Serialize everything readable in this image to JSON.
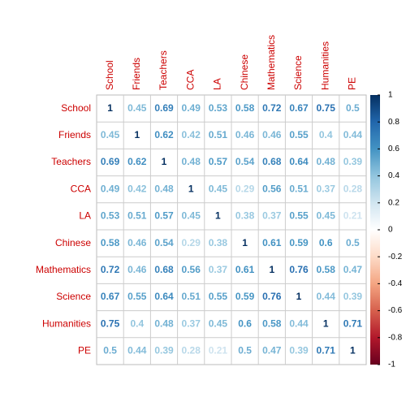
{
  "chart_data": {
    "type": "corrplot",
    "labels": [
      "School",
      "Friends",
      "Teachers",
      "CCA",
      "LA",
      "Chinese",
      "Mathematics",
      "Science",
      "Humanities",
      "PE"
    ],
    "values": [
      [
        1,
        0.45,
        0.69,
        0.49,
        0.53,
        0.58,
        0.72,
        0.67,
        0.75,
        0.5
      ],
      [
        0.45,
        1,
        0.62,
        0.42,
        0.51,
        0.46,
        0.46,
        0.55,
        0.4,
        0.44
      ],
      [
        0.69,
        0.62,
        1,
        0.48,
        0.57,
        0.54,
        0.68,
        0.64,
        0.48,
        0.39
      ],
      [
        0.49,
        0.42,
        0.48,
        1,
        0.45,
        0.29,
        0.56,
        0.51,
        0.37,
        0.28
      ],
      [
        0.53,
        0.51,
        0.57,
        0.45,
        1,
        0.38,
        0.37,
        0.55,
        0.45,
        0.21
      ],
      [
        0.58,
        0.46,
        0.54,
        0.29,
        0.38,
        1,
        0.61,
        0.59,
        0.6,
        0.5
      ],
      [
        0.72,
        0.46,
        0.68,
        0.56,
        0.37,
        0.61,
        1,
        0.76,
        0.58,
        0.47
      ],
      [
        0.67,
        0.55,
        0.64,
        0.51,
        0.55,
        0.59,
        0.76,
        1,
        0.44,
        0.39
      ],
      [
        0.75,
        0.4,
        0.48,
        0.37,
        0.45,
        0.6,
        0.58,
        0.44,
        1,
        0.71
      ],
      [
        0.5,
        0.44,
        0.39,
        0.28,
        0.21,
        0.5,
        0.47,
        0.39,
        0.71,
        1
      ]
    ],
    "clim": [
      -1,
      1
    ],
    "cticks": [
      1,
      0.8,
      0.6,
      0.4,
      0.2,
      0,
      -0.2,
      -0.4,
      -0.6,
      -0.8,
      -1
    ],
    "palette": [
      "#67001F",
      "#B2182B",
      "#D6604D",
      "#F4A582",
      "#FDDBC7",
      "#FFFFFF",
      "#D1E5F0",
      "#92C5DE",
      "#4393C3",
      "#2166AC",
      "#053061"
    ]
  }
}
